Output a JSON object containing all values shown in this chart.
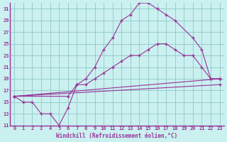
{
  "xlabel": "Windchill (Refroidissement éolien,°C)",
  "bg_color": "#caf0f0",
  "grid_color": "#99cccc",
  "line_color": "#993399",
  "xlim": [
    -0.5,
    23.5
  ],
  "ylim": [
    11,
    32
  ],
  "xticks": [
    0,
    1,
    2,
    3,
    4,
    5,
    6,
    7,
    8,
    9,
    10,
    11,
    12,
    13,
    14,
    15,
    16,
    17,
    18,
    19,
    20,
    21,
    22,
    23
  ],
  "yticks": [
    11,
    13,
    15,
    17,
    19,
    21,
    23,
    25,
    27,
    29,
    31
  ],
  "line1_x": [
    0,
    1,
    2,
    3,
    4,
    5,
    6,
    7,
    8,
    9,
    10,
    11,
    12,
    13,
    14,
    15,
    16,
    17,
    18,
    20,
    21,
    22,
    23
  ],
  "line1_y": [
    16,
    15,
    15,
    13,
    13,
    11,
    14,
    18,
    19,
    21,
    24,
    26,
    29,
    30,
    32,
    32,
    31,
    30,
    29,
    26,
    24,
    19,
    19
  ],
  "line2_x": [
    0,
    6,
    7,
    8,
    9,
    10,
    11,
    12,
    13,
    14,
    15,
    16,
    17,
    18,
    19,
    20,
    21,
    22,
    23
  ],
  "line2_y": [
    16,
    16,
    18,
    18,
    19,
    20,
    21,
    22,
    23,
    23,
    24,
    25,
    25,
    24,
    23,
    23,
    21,
    19,
    19
  ],
  "line3_x": [
    0,
    23
  ],
  "line3_y": [
    16,
    19
  ],
  "line4_x": [
    0,
    23
  ],
  "line4_y": [
    16,
    18
  ]
}
